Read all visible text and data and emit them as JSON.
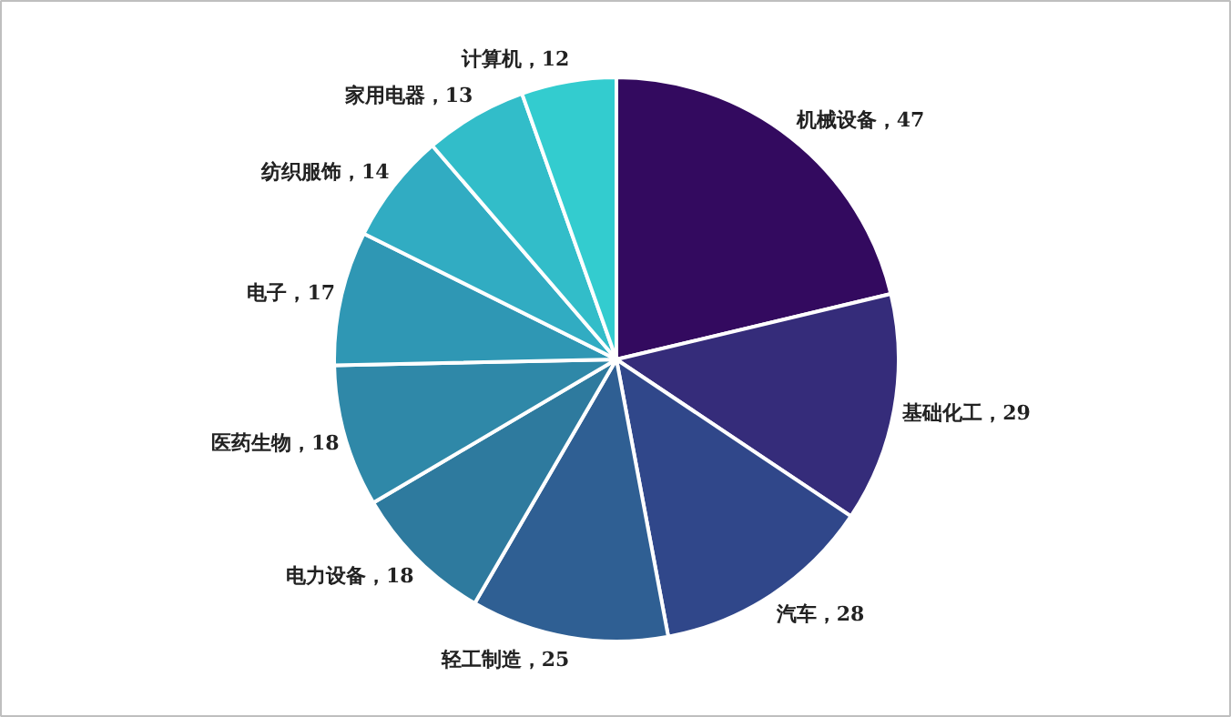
{
  "chart_data": {
    "type": "pie",
    "categories": [
      "机械设备",
      "基础化工",
      "汽车",
      "轻工制造",
      "电力设备",
      "医药生物",
      "电子",
      "纺织服饰",
      "家用电器",
      "计算机"
    ],
    "values": [
      47,
      29,
      28,
      25,
      18,
      18,
      17,
      14,
      13,
      12
    ],
    "colors": [
      "#330a5f",
      "#352c7a",
      "#30478a",
      "#2f5f93",
      "#2e7a9e",
      "#2f88a8",
      "#2f97b4",
      "#31acc2",
      "#32bdc9",
      "#33cccf"
    ],
    "value_labels": [
      "，47",
      "，29",
      "，28",
      "，25",
      "，18",
      "，18",
      "，17",
      "，14",
      "，13",
      "，12"
    ]
  }
}
